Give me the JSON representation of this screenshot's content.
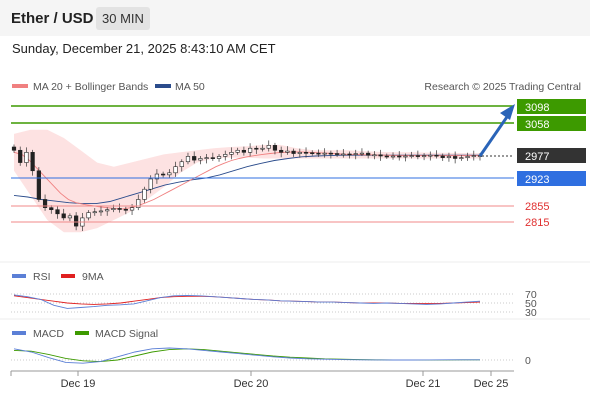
{
  "header": {
    "title": "Ether / USD",
    "timeframe": "30 MIN",
    "datetime": "Sunday, December 21, 2025 8:43:10 AM CET"
  },
  "legend": {
    "ma20_label": "MA 20 + Bollinger Bands",
    "ma50_label": "MA 50",
    "credit": "Research © 2025 Trading Central"
  },
  "colors": {
    "ma20": "#f08080",
    "ma50": "#2b4c8c",
    "bollinger_fill": "#fde2e2",
    "target": "#3d9a00",
    "pivot": "#2f6fe0",
    "support": "#e03030",
    "last": "#333333",
    "arrow": "#2a64b8",
    "rsi": "#5b7fd6",
    "rsi_ma": "#e02020",
    "macd": "#5b7fd6",
    "macd_signal": "#3d9a00"
  },
  "levels": {
    "targets": [
      "3098",
      "3058"
    ],
    "last": "2977",
    "pivot": "2923",
    "supports": [
      "2855",
      "2815"
    ]
  },
  "rsi_panel": {
    "label": "RSI",
    "ma_label": "9MA",
    "ticks": [
      "70",
      "50",
      "30"
    ]
  },
  "macd_panel": {
    "label": "MACD",
    "signal_label": "MACD Signal",
    "ticks": [
      "0"
    ]
  },
  "x_labels": [
    "Dec 19",
    "Dec 20",
    "Dec 21",
    "Dec 25"
  ],
  "chart_data": {
    "type": "candlestick",
    "title": "Ether / USD",
    "timeframe": "30 MIN",
    "ylim": [
      2780,
      3120
    ],
    "x_range": [
      "Dec 18",
      "Dec 25"
    ],
    "close": [
      2990,
      2960,
      2985,
      2940,
      2870,
      2850,
      2845,
      2835,
      2825,
      2830,
      2805,
      2825,
      2838,
      2840,
      2842,
      2845,
      2848,
      2846,
      2844,
      2850,
      2870,
      2895,
      2920,
      2932,
      2930,
      2935,
      2950,
      2962,
      2975,
      2966,
      2970,
      2972,
      2970,
      2975,
      2980,
      2985,
      2990,
      2985,
      2995,
      2993,
      2995,
      3002,
      2990,
      2985,
      2988,
      2982,
      2985,
      2984,
      2983,
      2982,
      2983,
      2982,
      2980,
      2981,
      2980,
      2982,
      2983,
      2978,
      2979,
      2976,
      2975,
      2976,
      2975,
      2976,
      2977,
      2976,
      2977,
      2978,
      2976,
      2972,
      2975,
      2970,
      2972,
      2975,
      2977,
      2977
    ],
    "ma20": [
      2985,
      2980,
      2965,
      2945,
      2925,
      2905,
      2885,
      2870,
      2862,
      2858,
      2855,
      2852,
      2850,
      2848,
      2847,
      2850,
      2855,
      2862,
      2870,
      2880,
      2890,
      2900,
      2910,
      2920,
      2930,
      2940,
      2950,
      2958,
      2965,
      2970,
      2974,
      2977,
      2980,
      2982,
      2984,
      2985,
      2986,
      2986,
      2985,
      2984,
      2983,
      2982,
      2981,
      2980,
      2980,
      2979,
      2979,
      2978,
      2978,
      2977,
      2977,
      2977,
      2977,
      2977,
      2977,
      2977,
      2977,
      2977,
      2977,
      2977,
      2977
    ],
    "ma50": [
      2880,
      2876,
      2870,
      2866,
      2862,
      2860,
      2860,
      2865,
      2875,
      2885,
      2895,
      2905,
      2912,
      2918,
      2922,
      2930,
      2940,
      2950,
      2958,
      2965,
      2970,
      2974,
      2976,
      2977,
      2978,
      2978,
      2978,
      2978,
      2978,
      2978,
      2978,
      2978,
      2978,
      2978,
      2978
    ],
    "bollinger_upper": [
      3030,
      3040,
      3040,
      3020,
      2990,
      2960,
      2950,
      2960,
      2970,
      2980,
      2985,
      2990,
      2995,
      2998,
      3000,
      3003,
      3003,
      2995,
      2990,
      2990,
      2990,
      2988,
      2986,
      2985,
      2985,
      2984,
      2984,
      2983,
      2983
    ],
    "bollinger_lower": [
      2940,
      2880,
      2820,
      2790,
      2790,
      2800,
      2820,
      2840,
      2870,
      2900,
      2935,
      2960,
      2970,
      2972,
      2972,
      2970,
      2970,
      2970,
      2970,
      2970,
      2970,
      2970,
      2970,
      2970,
      2970,
      2970,
      2970,
      2970,
      2970
    ],
    "levels": {
      "target_1": 3098,
      "target_2": 3058,
      "last": 2977,
      "pivot": 2923,
      "support_1": 2855,
      "support_2": 2815
    },
    "rsi": {
      "ticks": [
        70,
        50,
        30
      ],
      "ylim": [
        25,
        75
      ],
      "values": [
        68,
        64,
        58,
        45,
        38,
        40,
        42,
        45,
        46,
        48,
        55,
        62,
        66,
        67,
        66,
        64,
        62,
        60,
        58,
        57,
        55,
        54,
        53,
        52,
        52,
        51,
        50,
        49,
        50,
        49,
        48,
        47,
        48,
        50,
        52,
        54
      ]
    },
    "rsi_9ma": {
      "values": [
        66,
        62,
        58,
        54,
        50,
        48,
        47,
        48,
        50,
        54,
        58,
        62,
        64,
        65,
        65,
        64,
        62,
        60,
        58,
        57,
        55,
        54,
        53,
        52,
        52,
        51,
        50,
        50,
        50,
        49,
        49,
        49,
        49,
        50,
        51,
        52
      ]
    },
    "macd": {
      "ticks": [
        0
      ],
      "ylim": [
        -20,
        40
      ],
      "values": [
        28,
        20,
        6,
        -6,
        -8,
        -4,
        8,
        20,
        28,
        30,
        28,
        24,
        20,
        16,
        12,
        8,
        5,
        3,
        2,
        1,
        0.5,
        0.2,
        0,
        0,
        0.2,
        0.5,
        0.5,
        0.6
      ]
    },
    "macd_signal": {
      "values": [
        24,
        22,
        14,
        4,
        -2,
        -4,
        0,
        10,
        20,
        26,
        28,
        26,
        22,
        18,
        14,
        10,
        7,
        5,
        3,
        2,
        1,
        0.5,
        0.3,
        0.2,
        0.2,
        0.3,
        0.4,
        0.5
      ]
    }
  }
}
